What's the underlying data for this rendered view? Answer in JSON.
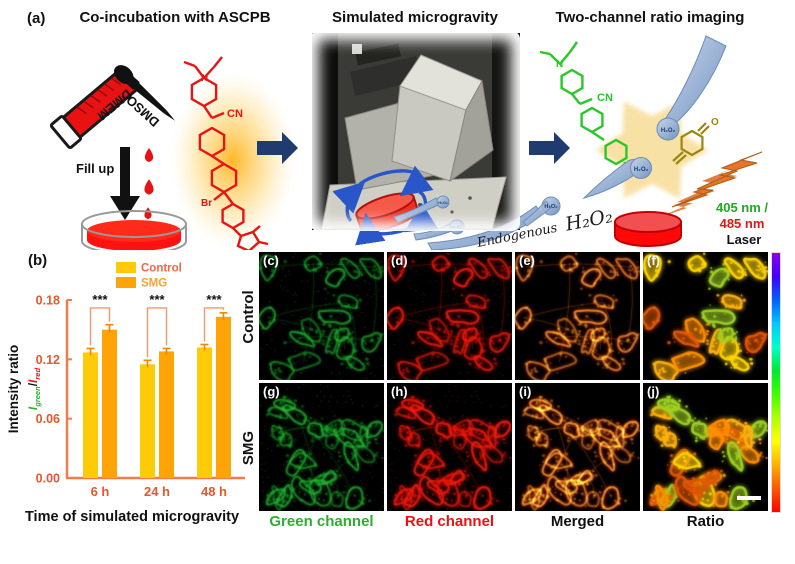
{
  "panel_a": {
    "label": "(a)",
    "left": {
      "title": "Co-incubation with ASCPB",
      "tube_label": "DMEM",
      "dropper_label": "DMSO",
      "arrow_label": "Fill up",
      "molecule_labels": {
        "n": "N",
        "cn": "CN",
        "br": "Br"
      },
      "molecule_color": "#e81414",
      "glow_color": "#ffb41e"
    },
    "middle": {
      "title": "Simulated microgravity",
      "endogenous_prefix": "Endogenous",
      "endogenous_h2o2": "H₂O₂",
      "bubble_label": "H₂O₂"
    },
    "right": {
      "title": "Two-channel ratio imaging",
      "molecule_labels": {
        "n_top": "N",
        "cn": "CN",
        "n_ring": "N",
        "o": "O"
      },
      "molecule_color": "#28c828",
      "bubble_label": "H₂O₂",
      "laser_line1": "405 nm /",
      "laser_line2": "485 nm",
      "laser_line3": "Laser",
      "laser_line1_color": "#1faa1f",
      "laser_line2_color": "#ee1111",
      "laser_line3_color": "#111111"
    }
  },
  "panel_b": {
    "label": "(b)"
  },
  "chart_data": {
    "type": "bar",
    "title": "",
    "categories": [
      "6 h",
      "24 h",
      "48 h"
    ],
    "series": [
      {
        "name": "Control",
        "color": "#ffca08",
        "values": [
          0.127,
          0.115,
          0.132
        ],
        "errors": [
          0.004,
          0.004,
          0.003
        ]
      },
      {
        "name": "SMG",
        "color": "#ffa406",
        "values": [
          0.15,
          0.128,
          0.163
        ],
        "errors": [
          0.005,
          0.003,
          0.004
        ]
      }
    ],
    "sig_labels": [
      "***",
      "***",
      "***"
    ],
    "sig_y": 0.172,
    "ylabel": "Intensity ratio",
    "ylabel_ratio": {
      "i1": "I",
      "sub1": "green",
      "slash": "/",
      "i2": "I",
      "sub2": "red",
      "green_color": "#2eae2e",
      "red_color": "#ee1111"
    },
    "xlabel": "Time of simulated microgravity",
    "ylim": [
      0,
      0.18
    ],
    "yticks": [
      0,
      0.06,
      0.12,
      0.18
    ],
    "grid": false,
    "legend_position": "top-left",
    "axis_color": "#f4794b",
    "tick_color": "#e8562a",
    "error_color": "#f08600",
    "bracket_color": "#f09a70",
    "legend_text_colors": [
      "#f2664a",
      "#ffa033"
    ]
  },
  "micrograph_grid": {
    "row_labels": [
      "Control",
      "SMG"
    ],
    "panel_letters": [
      [
        "(c)",
        "(d)",
        "(e)",
        "(f)"
      ],
      [
        "(g)",
        "(h)",
        "(i)",
        "(j)"
      ]
    ],
    "column_footers": [
      {
        "label": "Green channel",
        "color": "#2eae2e"
      },
      {
        "label": "Red channel",
        "color": "#ee1111"
      },
      {
        "label": "Merged",
        "color": "#111111"
      },
      {
        "label": "Ratio",
        "color": "#111111"
      }
    ],
    "colorbar_colors": [
      "#8a00e8",
      "#4000ff",
      "#0060ff",
      "#00c8ff",
      "#00ffc8",
      "#00e830",
      "#40ff00",
      "#b0ff00",
      "#ffff00",
      "#ffb000",
      "#ff5800",
      "#ff0000"
    ]
  }
}
